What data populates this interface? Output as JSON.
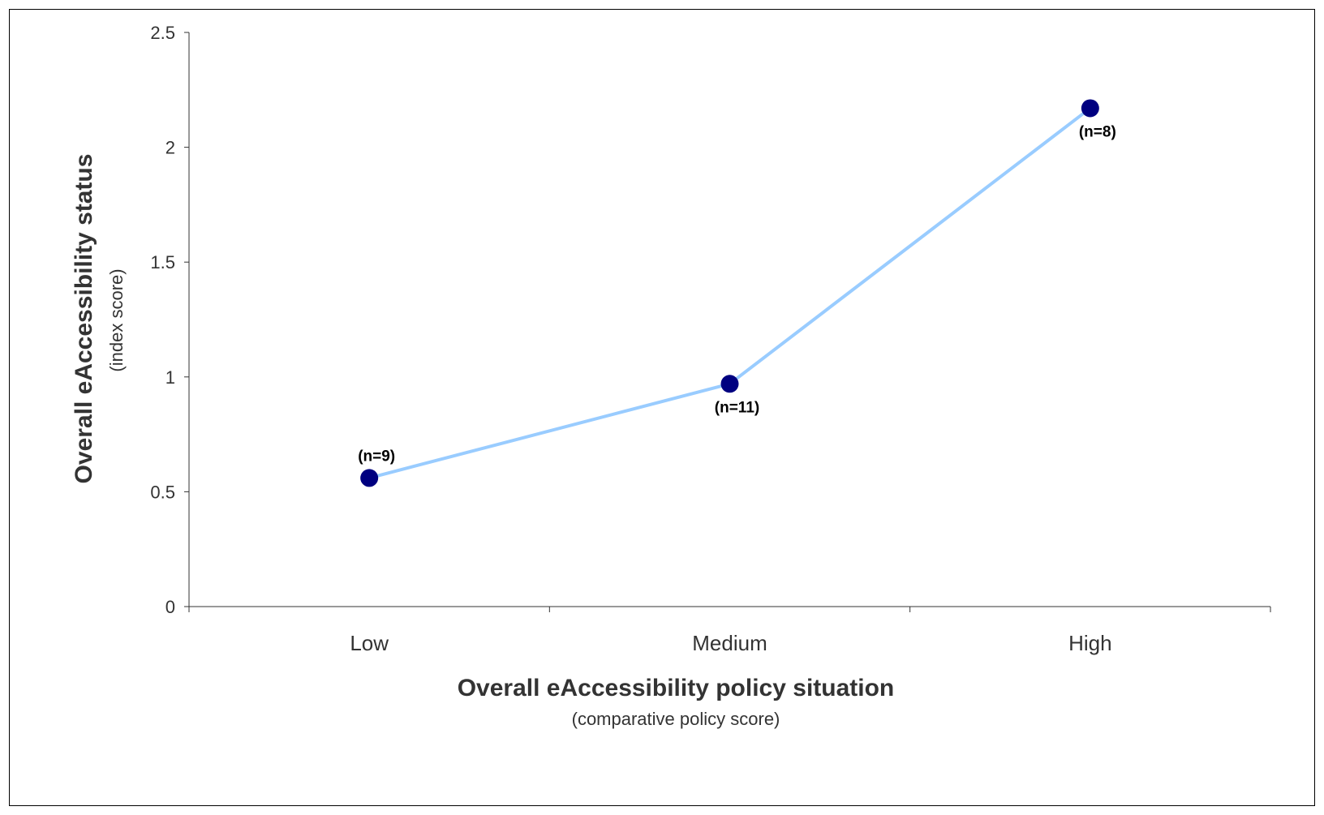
{
  "chart_data": {
    "type": "line",
    "categories": [
      "Low",
      "Medium",
      "High"
    ],
    "series": [
      {
        "values": [
          0.56,
          0.97,
          2.17
        ],
        "point_labels": [
          "(n=9)",
          "(n=11)",
          "(n=8)"
        ],
        "line_color": "#99ccff",
        "marker_color": "#000080"
      }
    ],
    "xlabel": "Overall eAccessibility policy situation",
    "xlabel_sub": "(comparative policy score)",
    "ylabel": "Overall eAccessibility status",
    "ylabel_sub": "(index score)",
    "ylim": [
      0,
      2.5
    ],
    "yticks": [
      "0",
      "0.5",
      "1",
      "1.5",
      "2",
      "2.5"
    ],
    "grid": false,
    "legend": false
  }
}
